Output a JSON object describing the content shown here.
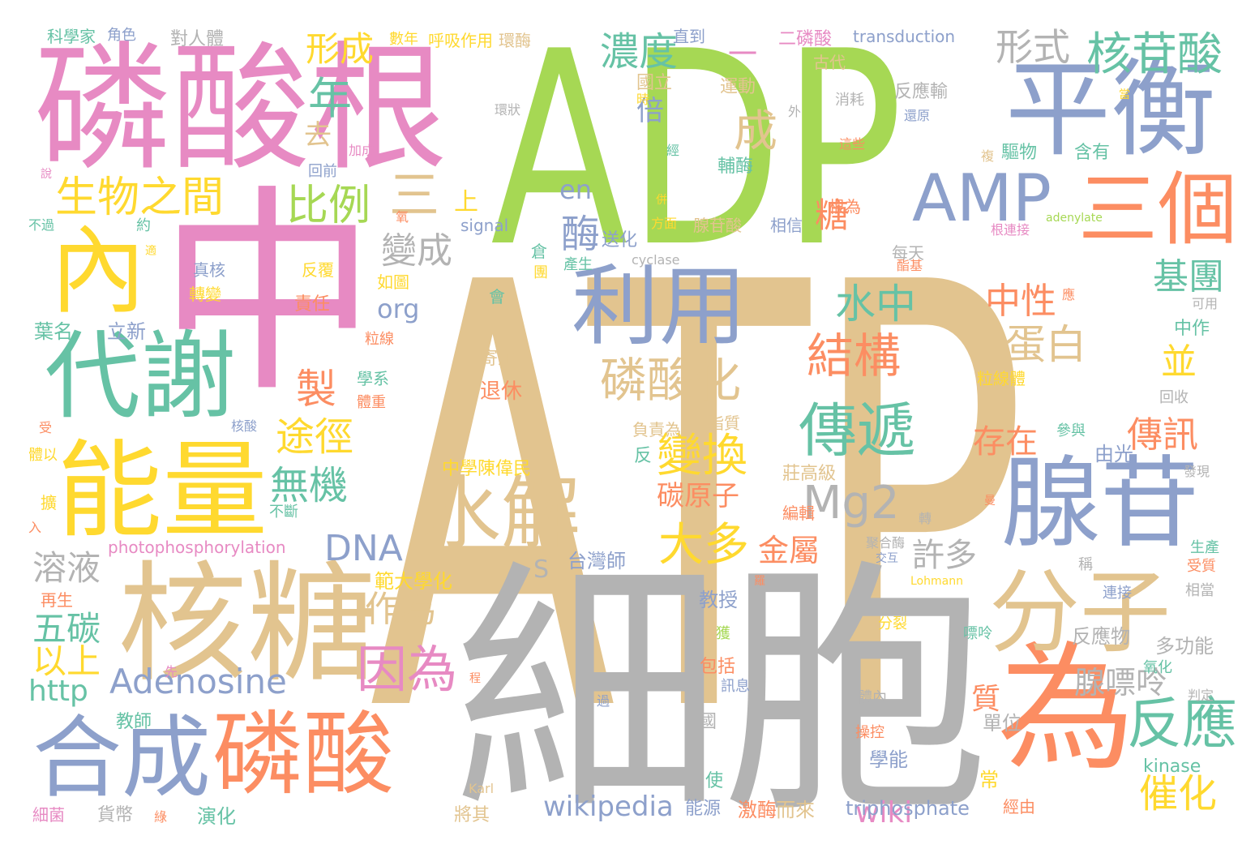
{
  "palette": {
    "tan": "#e2c48f",
    "green": "#a6d854",
    "pink": "#e78ac3",
    "blue": "#8da0cb",
    "orange": "#fc8d62",
    "teal": "#66c2a5",
    "yellow": "#ffd92f",
    "grey": "#b3b3b3"
  },
  "words": [
    {
      "text": "ATP",
      "color": "tan"
    },
    {
      "text": "ADP",
      "color": "green"
    },
    {
      "text": "細胞",
      "color": "grey"
    },
    {
      "text": "中",
      "color": "pink"
    },
    {
      "text": "磷酸根",
      "color": "pink"
    },
    {
      "text": "平衡",
      "color": "blue"
    },
    {
      "text": "核糖",
      "color": "tan"
    },
    {
      "text": "能量",
      "color": "yellow"
    },
    {
      "text": "代謝",
      "color": "teal"
    },
    {
      "text": "合成",
      "color": "blue"
    },
    {
      "text": "磷酸",
      "color": "orange"
    },
    {
      "text": "為",
      "color": "orange"
    },
    {
      "text": "腺苷",
      "color": "blue"
    },
    {
      "text": "分子",
      "color": "tan"
    },
    {
      "text": "內",
      "color": "yellow"
    },
    {
      "text": "利用",
      "color": "blue"
    },
    {
      "text": "水解",
      "color": "tan"
    },
    {
      "text": "三個",
      "color": "orange"
    },
    {
      "text": "AMP",
      "color": "blue"
    },
    {
      "text": "傳遞",
      "color": "teal"
    },
    {
      "text": "Adenosine",
      "color": "blue"
    },
    {
      "text": "反應",
      "color": "teal"
    },
    {
      "text": "因為",
      "color": "pink"
    },
    {
      "text": "核苷酸",
      "color": "teal"
    },
    {
      "text": "年",
      "color": "teal"
    },
    {
      "text": "生物之間",
      "color": "yellow"
    },
    {
      "text": "三",
      "color": "tan"
    },
    {
      "text": "磷酸化",
      "color": "tan"
    },
    {
      "text": "結構",
      "color": "orange"
    },
    {
      "text": "Mg2",
      "color": "grey"
    },
    {
      "text": "變換",
      "color": "yellow"
    },
    {
      "text": "大多",
      "color": "yellow"
    },
    {
      "text": "比例",
      "color": "green"
    },
    {
      "text": "水中",
      "color": "teal"
    },
    {
      "text": "形式",
      "color": "grey"
    },
    {
      "text": "濃度",
      "color": "teal"
    },
    {
      "text": "形成",
      "color": "yellow"
    },
    {
      "text": "成",
      "color": "tan"
    },
    {
      "text": "製",
      "color": "orange"
    },
    {
      "text": "途徑",
      "color": "yellow"
    },
    {
      "text": "無機",
      "color": "teal"
    },
    {
      "text": "DNA",
      "color": "blue"
    },
    {
      "text": "溶液",
      "color": "grey"
    },
    {
      "text": "作為",
      "color": "tan"
    },
    {
      "text": "五碳",
      "color": "teal"
    },
    {
      "text": "以上",
      "color": "yellow"
    },
    {
      "text": "http",
      "color": "teal"
    },
    {
      "text": "wikipedia",
      "color": "blue"
    },
    {
      "text": "wiki",
      "color": "pink"
    },
    {
      "text": "催化",
      "color": "yellow"
    },
    {
      "text": "傳訊",
      "color": "orange"
    },
    {
      "text": "基團",
      "color": "teal"
    },
    {
      "text": "並",
      "color": "yellow"
    },
    {
      "text": "存在",
      "color": "orange"
    },
    {
      "text": "蛋白",
      "color": "tan"
    },
    {
      "text": "中性",
      "color": "orange"
    },
    {
      "text": "金屬",
      "color": "orange"
    },
    {
      "text": "許多",
      "color": "grey"
    },
    {
      "text": "腺嘌呤",
      "color": "grey"
    },
    {
      "text": "變成",
      "color": "grey"
    },
    {
      "text": "酶",
      "color": "blue"
    },
    {
      "text": "上",
      "color": "yellow"
    },
    {
      "text": "去",
      "color": "tan"
    },
    {
      "text": "倍",
      "color": "blue"
    },
    {
      "text": "碳原子",
      "color": "orange"
    },
    {
      "text": "質",
      "color": "orange"
    },
    {
      "text": "糖",
      "color": "orange"
    },
    {
      "text": "org",
      "color": "blue"
    },
    {
      "text": "en",
      "color": "blue"
    },
    {
      "text": "S",
      "color": "grey"
    },
    {
      "text": "多功能",
      "color": "grey"
    },
    {
      "text": "反應物",
      "color": "grey"
    },
    {
      "text": "單位",
      "color": "grey"
    },
    {
      "text": "學能",
      "color": "blue"
    },
    {
      "text": "由光",
      "color": "blue"
    },
    {
      "text": "教授",
      "color": "blue"
    },
    {
      "text": "範大學化",
      "color": "yellow"
    },
    {
      "text": "台灣師",
      "color": "blue"
    },
    {
      "text": "中學陳偉民",
      "color": "yellow"
    },
    {
      "text": "莊高級",
      "color": "tan"
    },
    {
      "text": "負責為",
      "color": "tan"
    },
    {
      "text": "脂質",
      "color": "tan"
    },
    {
      "text": "編輯",
      "color": "orange"
    },
    {
      "text": "不斷",
      "color": "teal"
    },
    {
      "text": "photophosphorylation",
      "color": "pink"
    },
    {
      "text": "反覆",
      "color": "yellow"
    },
    {
      "text": "責任",
      "color": "orange"
    },
    {
      "text": "轉變",
      "color": "yellow"
    },
    {
      "text": "真核",
      "color": "blue"
    },
    {
      "text": "如圖",
      "color": "yellow"
    },
    {
      "text": "葉名",
      "color": "teal"
    },
    {
      "text": "立新",
      "color": "blue"
    },
    {
      "text": "退休",
      "color": "orange"
    },
    {
      "text": "寄主",
      "color": "tan"
    },
    {
      "text": "學系",
      "color": "teal"
    },
    {
      "text": "體重",
      "color": "orange"
    },
    {
      "text": "粒線",
      "color": "orange"
    },
    {
      "text": "粒線體",
      "color": "yellow"
    },
    {
      "text": "回收",
      "color": "grey"
    },
    {
      "text": "中作",
      "color": "teal"
    },
    {
      "text": "可用",
      "color": "grey"
    },
    {
      "text": "應",
      "color": "orange"
    },
    {
      "text": "參與",
      "color": "teal"
    },
    {
      "text": "發現",
      "color": "grey"
    },
    {
      "text": "曼",
      "color": "orange"
    },
    {
      "text": "生產",
      "color": "teal"
    },
    {
      "text": "受質",
      "color": "orange"
    },
    {
      "text": "相當",
      "color": "grey"
    },
    {
      "text": "稱",
      "color": "grey"
    },
    {
      "text": "連接",
      "color": "blue"
    },
    {
      "text": "Lohmann",
      "color": "yellow"
    },
    {
      "text": "聚合酶",
      "color": "grey"
    },
    {
      "text": "交互",
      "color": "blue"
    },
    {
      "text": "轉",
      "color": "grey"
    },
    {
      "text": "嘌呤",
      "color": "teal"
    },
    {
      "text": "分裂",
      "color": "yellow"
    },
    {
      "text": "氧化",
      "color": "teal"
    },
    {
      "text": "判定",
      "color": "grey"
    },
    {
      "text": "操控",
      "color": "orange"
    },
    {
      "text": "kinase",
      "color": "teal"
    },
    {
      "text": "常",
      "color": "yellow"
    },
    {
      "text": "經由",
      "color": "orange"
    },
    {
      "text": "triphosphate",
      "color": "blue"
    },
    {
      "text": "激酶",
      "color": "orange"
    },
    {
      "text": "而來",
      "color": "tan"
    },
    {
      "text": "能源",
      "color": "blue"
    },
    {
      "text": "將其",
      "color": "tan"
    },
    {
      "text": "Karl",
      "color": "tan"
    },
    {
      "text": "使",
      "color": "teal"
    },
    {
      "text": "國",
      "color": "grey"
    },
    {
      "text": "包括",
      "color": "orange"
    },
    {
      "text": "訊息",
      "color": "blue"
    },
    {
      "text": "獲",
      "color": "green"
    },
    {
      "text": "過",
      "color": "blue"
    },
    {
      "text": "體內",
      "color": "grey"
    },
    {
      "text": "反",
      "color": "teal"
    },
    {
      "text": "演化",
      "color": "teal"
    },
    {
      "text": "綠",
      "color": "orange"
    },
    {
      "text": "貨幣",
      "color": "grey"
    },
    {
      "text": "細菌",
      "color": "pink"
    },
    {
      "text": "教師",
      "color": "teal"
    },
    {
      "text": "先",
      "color": "pink"
    },
    {
      "text": "再生",
      "color": "orange"
    },
    {
      "text": "擴",
      "color": "yellow"
    },
    {
      "text": "入",
      "color": "orange"
    },
    {
      "text": "體以",
      "color": "yellow"
    },
    {
      "text": "受",
      "color": "orange"
    },
    {
      "text": "核酸",
      "color": "blue"
    },
    {
      "text": "科學家",
      "color": "teal"
    },
    {
      "text": "角色",
      "color": "blue"
    },
    {
      "text": "對人體",
      "color": "grey"
    },
    {
      "text": "數年",
      "color": "yellow"
    },
    {
      "text": "呼吸作用",
      "color": "yellow"
    },
    {
      "text": "環酶",
      "color": "tan"
    },
    {
      "text": "直到",
      "color": "blue"
    },
    {
      "text": "二磷酸",
      "color": "pink"
    },
    {
      "text": "transduction",
      "color": "blue"
    },
    {
      "text": "古代",
      "color": "tan"
    },
    {
      "text": "國立",
      "color": "tan"
    },
    {
      "text": "運動",
      "color": "tan"
    },
    {
      "text": "反應輸",
      "color": "grey"
    },
    {
      "text": "消耗",
      "color": "grey"
    },
    {
      "text": "還原",
      "color": "blue"
    },
    {
      "text": "時",
      "color": "yellow"
    },
    {
      "text": "環狀",
      "color": "grey"
    },
    {
      "text": "外",
      "color": "grey"
    },
    {
      "text": "經",
      "color": "teal"
    },
    {
      "text": "這些",
      "color": "orange"
    },
    {
      "text": "複",
      "color": "tan"
    },
    {
      "text": "驅物",
      "color": "teal"
    },
    {
      "text": "含有",
      "color": "teal"
    },
    {
      "text": "當",
      "color": "yellow"
    },
    {
      "text": "加成",
      "color": "pink"
    },
    {
      "text": "說",
      "color": "pink"
    },
    {
      "text": "回前",
      "color": "blue"
    },
    {
      "text": "輔酶",
      "color": "teal"
    },
    {
      "text": "根為",
      "color": "orange"
    },
    {
      "text": "不過",
      "color": "teal"
    },
    {
      "text": "約",
      "color": "teal"
    },
    {
      "text": "氧",
      "color": "orange"
    },
    {
      "text": "signal",
      "color": "blue"
    },
    {
      "text": "方面",
      "color": "yellow"
    },
    {
      "text": "併",
      "color": "yellow"
    },
    {
      "text": "腺苷酸",
      "color": "tan"
    },
    {
      "text": "相信",
      "color": "blue"
    },
    {
      "text": "每天",
      "color": "grey"
    },
    {
      "text": "adenylate",
      "color": "green"
    },
    {
      "text": "根連接",
      "color": "pink"
    },
    {
      "text": "適",
      "color": "yellow"
    },
    {
      "text": "倉",
      "color": "teal"
    },
    {
      "text": "團",
      "color": "yellow"
    },
    {
      "text": "送化",
      "color": "blue"
    },
    {
      "text": "產生",
      "color": "teal"
    },
    {
      "text": "cyclase",
      "color": "grey"
    },
    {
      "text": "會",
      "color": "teal"
    },
    {
      "text": "酯基",
      "color": "orange"
    },
    {
      "text": "一",
      "color": "pink"
    },
    {
      "text": "程",
      "color": "orange"
    },
    {
      "text": "羅",
      "color": "orange"
    }
  ]
}
